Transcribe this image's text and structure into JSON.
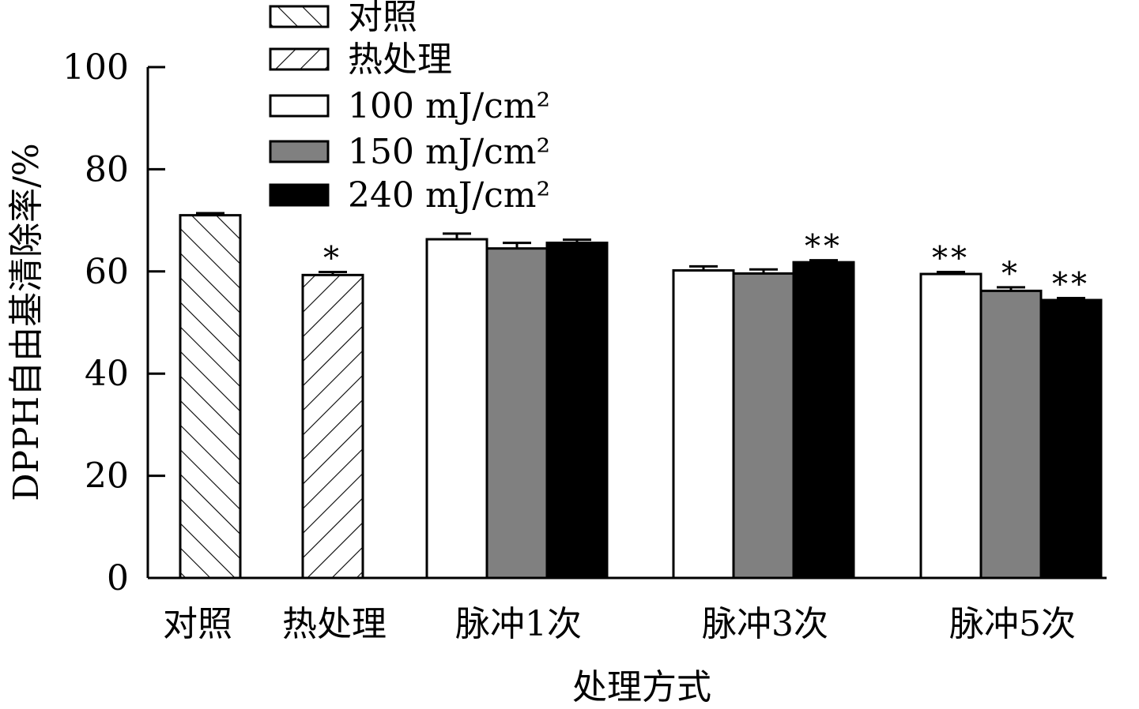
{
  "chart_data": {
    "type": "bar",
    "title": "",
    "xlabel": "处理方式",
    "ylabel": "DPPH自由基清除率/%",
    "ylim": [
      0,
      100
    ],
    "yticks": [
      0,
      20,
      40,
      60,
      80,
      100
    ],
    "grid": false,
    "legend_position": "top-left",
    "legend": [
      {
        "label": "对照",
        "fill": "hatch-forward"
      },
      {
        "label": "热处理",
        "fill": "hatch-backward"
      },
      {
        "label": "100 mJ/cm²",
        "fill": "#ffffff"
      },
      {
        "label": "150 mJ/cm²",
        "fill": "#808080"
      },
      {
        "label": "240 mJ/cm²",
        "fill": "#000000"
      }
    ],
    "groups": [
      {
        "category": "对照",
        "bars": [
          {
            "series": "对照",
            "value": 71.0,
            "error": 0.4,
            "sig": ""
          }
        ]
      },
      {
        "category": "热处理",
        "bars": [
          {
            "series": "热处理",
            "value": 59.3,
            "error": 0.6,
            "sig": "*"
          }
        ]
      },
      {
        "category": "脉冲1次",
        "bars": [
          {
            "series": "100 mJ/cm²",
            "value": 66.3,
            "error": 1.1,
            "sig": ""
          },
          {
            "series": "150 mJ/cm²",
            "value": 64.5,
            "error": 1.1,
            "sig": ""
          },
          {
            "series": "240 mJ/cm²",
            "value": 65.6,
            "error": 0.6,
            "sig": ""
          }
        ]
      },
      {
        "category": "脉冲3次",
        "bars": [
          {
            "series": "100 mJ/cm²",
            "value": 60.2,
            "error": 0.8,
            "sig": ""
          },
          {
            "series": "150 mJ/cm²",
            "value": 59.6,
            "error": 0.8,
            "sig": ""
          },
          {
            "series": "240 mJ/cm²",
            "value": 61.8,
            "error": 0.4,
            "sig": "**"
          }
        ]
      },
      {
        "category": "脉冲5次",
        "bars": [
          {
            "series": "100 mJ/cm²",
            "value": 59.5,
            "error": 0.4,
            "sig": "**"
          },
          {
            "series": "150 mJ/cm²",
            "value": 56.2,
            "error": 0.7,
            "sig": "*"
          },
          {
            "series": "240 mJ/cm²",
            "value": 54.4,
            "error": 0.4,
            "sig": "**"
          }
        ]
      }
    ]
  }
}
